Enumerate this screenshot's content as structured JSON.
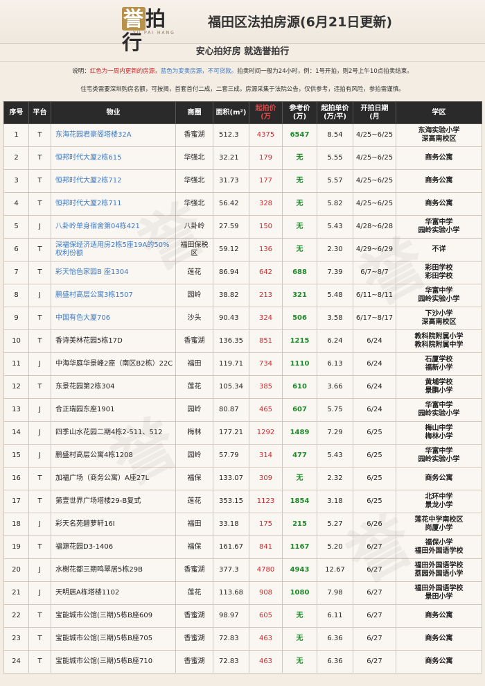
{
  "header": {
    "logo_text_a": "誉",
    "logo_text_b": "拍行",
    "logo_sub": "YU PAI HANG",
    "title": "福田区法拍房源(6月21日更新)"
  },
  "slogan": "安心拍好房 就选誉拍行",
  "notes": {
    "line1_prefix": "说明：",
    "line1_red": "红色为一周内更新的房源，",
    "line1_blue": "蓝色为变卖房源，不可贷款。",
    "line1_rest": "拍卖时间一般为24小时，例：1号开拍，则2号上午10点拍卖结束。",
    "line2": "住宅类需要深圳购房名额，可按揭，首套首付二成，二套三成，房源采集于法院公告，仅供参考，违拍有风险，参拍需谨慎。"
  },
  "table": {
    "headers": {
      "no": "序号",
      "platform": "平台",
      "property": "物业",
      "district": "商圈",
      "area": "面积(m²)",
      "start_price_l1": "起拍价",
      "start_price_l2": "(万",
      "ref_price_l1": "参考价",
      "ref_price_l2": "(万)",
      "unit_price_l1": "起拍单价",
      "unit_price_l2": "(万/平)",
      "date_l1": "开拍日期",
      "date_l2": "(月",
      "school": "学区"
    },
    "rows": [
      {
        "no": "1",
        "platform": "T",
        "property": "东海花园君豪阁塔楼32A",
        "blue": true,
        "district": "香蜜湖",
        "area": "512.3",
        "start_price": "4375",
        "ref_price": "6547",
        "unit_price": "8.54",
        "date": "4/25~6/25",
        "school": [
          "东海实验小学",
          "深高南校区"
        ]
      },
      {
        "no": "2",
        "platform": "T",
        "property": "恒邦时代大厦2栋615",
        "blue": true,
        "district": "华强北",
        "area": "32.21",
        "start_price": "179",
        "ref_price": "无",
        "unit_price": "5.55",
        "date": "4/25~6/25",
        "school": [
          "商务公寓"
        ]
      },
      {
        "no": "3",
        "platform": "T",
        "property": "恒邦时代大厦2栋712",
        "blue": true,
        "district": "华强北",
        "area": "31.73",
        "start_price": "177",
        "ref_price": "无",
        "unit_price": "5.57",
        "date": "4/25~6/25",
        "school": [
          "商务公寓"
        ]
      },
      {
        "no": "4",
        "platform": "T",
        "property": "恒邦时代大厦2栋711",
        "blue": true,
        "district": "华强北",
        "area": "56.42",
        "start_price": "328",
        "ref_price": "无",
        "unit_price": "5.82",
        "date": "4/25~6/25",
        "school": [
          "商务公寓"
        ]
      },
      {
        "no": "5",
        "platform": "J",
        "property": "八卦岭单身宿舍第04栋421",
        "blue": true,
        "district": "八卦岭",
        "area": "27.59",
        "start_price": "150",
        "ref_price": "无",
        "unit_price": "5.43",
        "date": "4/28~6/28",
        "school": [
          "华富中学",
          "园岭实验小学"
        ]
      },
      {
        "no": "6",
        "platform": "T",
        "property": "深福保经济适用房2栋5座19A的50%权利份额",
        "blue": true,
        "district": "福田保税区",
        "area": "59.12",
        "start_price": "136",
        "ref_price": "无",
        "unit_price": "2.30",
        "date": "4/29~6/29",
        "school": [
          "不详"
        ]
      },
      {
        "no": "7",
        "platform": "T",
        "property": "彩天怡色家园B 座1304",
        "blue": true,
        "district": "莲花",
        "area": "86.94",
        "start_price": "642",
        "ref_price": "688",
        "unit_price": "7.39",
        "date": "6/7~8/7",
        "school": [
          "彩田学校",
          "彩田学校"
        ]
      },
      {
        "no": "8",
        "platform": "J",
        "property": "鹏盛村高层公寓3栋1507",
        "blue": true,
        "district": "园岭",
        "area": "38.82",
        "start_price": "213",
        "ref_price": "321",
        "unit_price": "5.48",
        "date": "6/11~8/11",
        "school": [
          "华富中学",
          "园岭实验小学"
        ]
      },
      {
        "no": "9",
        "platform": "T",
        "property": "中国有色大厦706",
        "blue": true,
        "district": "沙头",
        "area": "90.43",
        "start_price": "324",
        "ref_price": "506",
        "unit_price": "3.58",
        "date": "6/17~8/17",
        "school": [
          "下沙小学",
          "深高南校区"
        ]
      },
      {
        "no": "10",
        "platform": "T",
        "property": "香诗美林花园5栋17D",
        "blue": false,
        "district": "香蜜湖",
        "area": "136.35",
        "start_price": "851",
        "ref_price": "1215",
        "unit_price": "6.24",
        "date": "6/24",
        "school": [
          "教科院附属小学",
          "教科院附属中学"
        ]
      },
      {
        "no": "11",
        "platform": "J",
        "property": "中海华庭华景峰2座（南区B2栋）22C",
        "blue": false,
        "district": "福田",
        "area": "119.71",
        "start_price": "734",
        "ref_price": "1110",
        "unit_price": "6.13",
        "date": "6/24",
        "school": [
          "石厦学校",
          "福新小学"
        ]
      },
      {
        "no": "12",
        "platform": "T",
        "property": "东景花园第2栋304",
        "blue": false,
        "district": "莲花",
        "area": "105.34",
        "start_price": "385",
        "ref_price": "610",
        "unit_price": "3.66",
        "date": "6/24",
        "school": [
          "黄埔学校",
          "景鹏小学"
        ]
      },
      {
        "no": "13",
        "platform": "J",
        "property": "合正瑞园东座1901",
        "blue": false,
        "district": "园岭",
        "area": "80.87",
        "start_price": "465",
        "ref_price": "607",
        "unit_price": "5.75",
        "date": "6/24",
        "school": [
          "华富中学",
          "园岭实验小学"
        ]
      },
      {
        "no": "14",
        "platform": "J",
        "property": "四季山水花园二期4栋2-511、512",
        "blue": false,
        "district": "梅林",
        "area": "177.21",
        "start_price": "1292",
        "ref_price": "1489",
        "unit_price": "7.29",
        "date": "6/25",
        "school": [
          "梅山中学",
          "梅林小学"
        ]
      },
      {
        "no": "15",
        "platform": "J",
        "property": "鹏盛村高层公寓4栋1208",
        "blue": false,
        "district": "园岭",
        "area": "57.79",
        "start_price": "314",
        "ref_price": "477",
        "unit_price": "5.43",
        "date": "6/25",
        "school": [
          "华富中学",
          "园岭实验小学"
        ]
      },
      {
        "no": "16",
        "platform": "T",
        "property": "加福广场（商务公寓）A座27L",
        "blue": false,
        "district": "福保",
        "area": "133.07",
        "start_price": "309",
        "ref_price": "无",
        "unit_price": "2.32",
        "date": "6/25",
        "school": [
          "商务公寓"
        ]
      },
      {
        "no": "17",
        "platform": "T",
        "property": "第壹世界广场塔楼29-B复式",
        "blue": false,
        "district": "莲花",
        "area": "353.15",
        "start_price": "1123",
        "ref_price": "1854",
        "unit_price": "3.18",
        "date": "6/25",
        "school": [
          "北环中学",
          "景龙小学"
        ]
      },
      {
        "no": "18",
        "platform": "J",
        "property": "彩天名苑碧萝轩16I",
        "blue": false,
        "district": "福田",
        "area": "33.18",
        "start_price": "175",
        "ref_price": "215",
        "unit_price": "5.27",
        "date": "6/26",
        "school": [
          "莲花中学南校区",
          "岗厦小学"
        ]
      },
      {
        "no": "19",
        "platform": "T",
        "property": "福源花园D3-1406",
        "blue": false,
        "district": "福保",
        "area": "161.67",
        "start_price": "841",
        "ref_price": "1167",
        "unit_price": "5.20",
        "date": "6/27",
        "school": [
          "福保小学",
          "福田外国语学校"
        ]
      },
      {
        "no": "20",
        "platform": "J",
        "property": "水榭花都三期鸣翠居5栋29B",
        "blue": false,
        "district": "香蜜湖",
        "area": "377.3",
        "start_price": "4780",
        "ref_price": "4943",
        "unit_price": "12.67",
        "date": "6/27",
        "school": [
          "福田外国语学校",
          "荔园外国语小学"
        ]
      },
      {
        "no": "21",
        "platform": "J",
        "property": "天明居A栋塔楼1102",
        "blue": false,
        "district": "莲花",
        "area": "113.68",
        "start_price": "908",
        "ref_price": "1080",
        "unit_price": "7.98",
        "date": "6/27",
        "school": [
          "福田外国语学校",
          "景田小学"
        ]
      },
      {
        "no": "22",
        "platform": "T",
        "property": "宝能城市公馆(三期)5栋B座609",
        "blue": false,
        "district": "香蜜湖",
        "area": "98.97",
        "start_price": "605",
        "ref_price": "无",
        "unit_price": "6.11",
        "date": "6/27",
        "school": [
          "商务公寓"
        ]
      },
      {
        "no": "23",
        "platform": "T",
        "property": "宝能城市公馆(三期)5栋B座705",
        "blue": false,
        "district": "香蜜湖",
        "area": "72.83",
        "start_price": "463",
        "ref_price": "无",
        "unit_price": "6.36",
        "date": "6/27",
        "school": [
          "商务公寓"
        ]
      },
      {
        "no": "24",
        "platform": "T",
        "property": "宝能城市公馆(三期)5栋B座710",
        "blue": false,
        "district": "香蜜湖",
        "area": "72.83",
        "start_price": "463",
        "ref_price": "无",
        "unit_price": "6.36",
        "date": "6/27",
        "school": [
          "商务公寓"
        ]
      }
    ]
  },
  "watermark_text": "誉"
}
